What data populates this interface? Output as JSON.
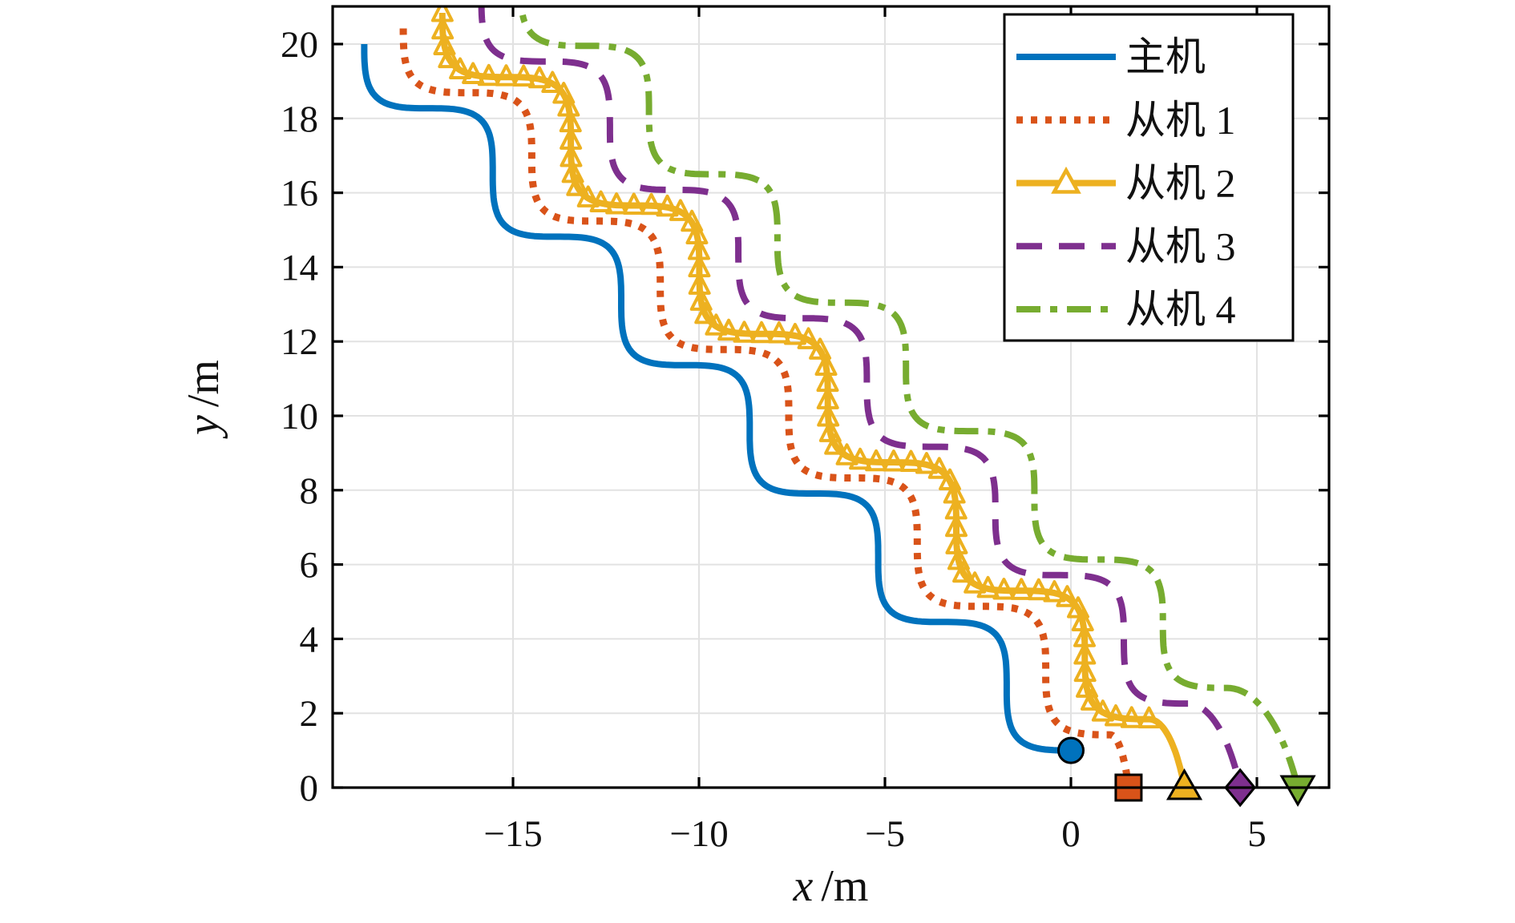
{
  "figure": {
    "background": "#ffffff",
    "title": ""
  },
  "chart_data": {
    "type": "line",
    "title": "",
    "xlabel": "x /m",
    "ylabel": "y /m",
    "xlabel_var": "x",
    "xlabel_unit": "/m",
    "ylabel_var": "y",
    "ylabel_unit": "/m",
    "xlim": [
      -19.85,
      6.95
    ],
    "ylim": [
      0,
      21
    ],
    "grid": true,
    "grid_color": "#e2e2e2",
    "axis_color": "#000000",
    "legend_position": "top-right-inside",
    "x_ticks": {
      "values": [
        -15,
        -10,
        -5,
        0,
        5
      ],
      "labels": [
        "−15",
        "−10",
        "−5",
        "0",
        "5"
      ]
    },
    "y_ticks": {
      "values": [
        0,
        2,
        4,
        6,
        8,
        10,
        12,
        14,
        16,
        18,
        20
      ],
      "labels": [
        "0",
        "2",
        "4",
        "6",
        "8",
        "10",
        "12",
        "14",
        "16",
        "18",
        "20"
      ]
    },
    "base_path_model": {
      "description": "terraced descending diagonal: P(t) = (x0 + ox + run*t + amp*sin(2*pi*periods*t + pi), y0 + oy - drop*t + amp*sin(2*pi*periods*t + pi)), t in [0,1]; followers append a smooth dive from the wave end down to their end point",
      "x0": -19,
      "y0": 20,
      "run": 19,
      "drop": 19,
      "amp": 0.55,
      "periods": 5.5
    },
    "series": [
      {
        "name": "主机",
        "role": "leader",
        "color": "#0072BD",
        "line_style": "solid",
        "offset": [
          0,
          0
        ],
        "start": [
          -19,
          20
        ],
        "end": [
          0,
          1
        ],
        "end_marker": "circle",
        "dive_to": null,
        "path_markers": null
      },
      {
        "name": "从机 1",
        "role": "follower",
        "color": "#D95319",
        "line_style": "dotted",
        "offset": [
          1.05,
          0.42
        ],
        "end": [
          1.55,
          0
        ],
        "end_marker": "square",
        "dive_to": [
          1.55,
          0
        ],
        "path_markers": null
      },
      {
        "name": "从机 2",
        "role": "follower",
        "color": "#EDB120",
        "line_style": "solid",
        "offset": [
          2.1,
          0.84
        ],
        "end": [
          3.05,
          0
        ],
        "end_marker": "triangle-up",
        "dive_to": [
          3.05,
          0
        ],
        "path_markers": "triangle-up"
      },
      {
        "name": "从机 3",
        "role": "follower",
        "color": "#7E2F8E",
        "line_style": "dashed",
        "offset": [
          3.15,
          1.26
        ],
        "end": [
          4.55,
          0
        ],
        "end_marker": "diamond",
        "dive_to": [
          4.55,
          0
        ],
        "path_markers": null
      },
      {
        "name": "从机 4",
        "role": "follower",
        "color": "#77AC30",
        "line_style": "dashdot",
        "offset": [
          4.2,
          1.68
        ],
        "end": [
          6.1,
          0
        ],
        "end_marker": "triangle-down",
        "dive_to": [
          6.1,
          0
        ],
        "path_markers": null
      }
    ]
  }
}
